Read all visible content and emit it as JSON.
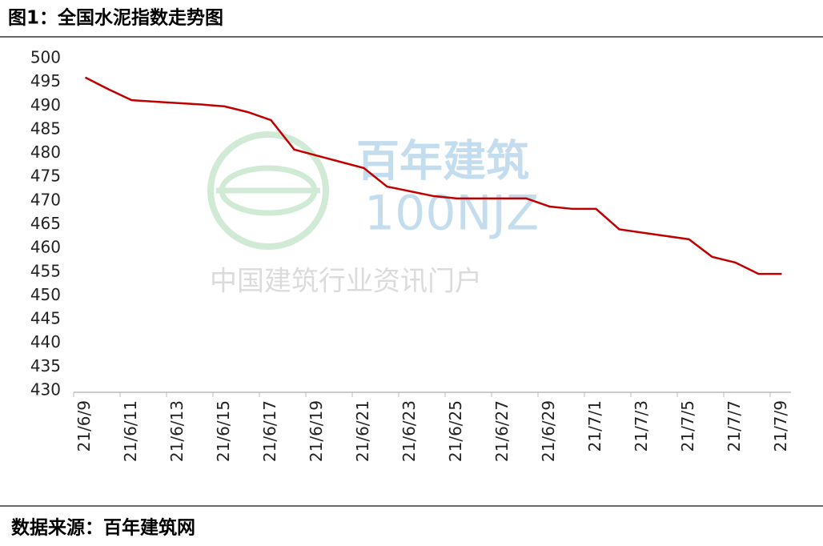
{
  "chart_data": {
    "type": "line",
    "title": "图1：全国水泥指数走势图",
    "source": "数据来源：百年建筑网",
    "watermark": {
      "brand": "百年建筑",
      "code": "100NJZ",
      "slogan": "中国建筑行业资讯门户"
    },
    "categories": [
      "21/6/9",
      null,
      "21/6/11",
      null,
      "21/6/13",
      null,
      "21/6/15",
      null,
      "21/6/17",
      null,
      "21/6/19",
      null,
      "21/6/21",
      null,
      "21/6/23",
      null,
      "21/6/25",
      null,
      "21/6/27",
      null,
      "21/6/29",
      null,
      "21/7/1",
      null,
      "21/7/3",
      null,
      "21/7/5",
      null,
      "21/7/7",
      null,
      "21/7/9"
    ],
    "series": [
      {
        "name": "全国水泥指数",
        "color": "#c00000",
        "values": [
          496,
          493.5,
          491.2,
          490.9,
          490.6,
          490.3,
          489.9,
          488.7,
          487,
          480.8,
          479.5,
          478.2,
          476.9,
          473,
          472,
          471,
          470.5,
          470.5,
          470.5,
          470.5,
          468.8,
          468.3,
          468.3,
          464,
          463.3,
          462.6,
          461.9,
          458.2,
          457,
          454.6,
          454.6
        ]
      }
    ],
    "ylim": [
      430,
      500
    ],
    "yticks": [
      430,
      435,
      440,
      445,
      450,
      455,
      460,
      465,
      470,
      475,
      480,
      485,
      490,
      495,
      500
    ],
    "grid": false
  }
}
